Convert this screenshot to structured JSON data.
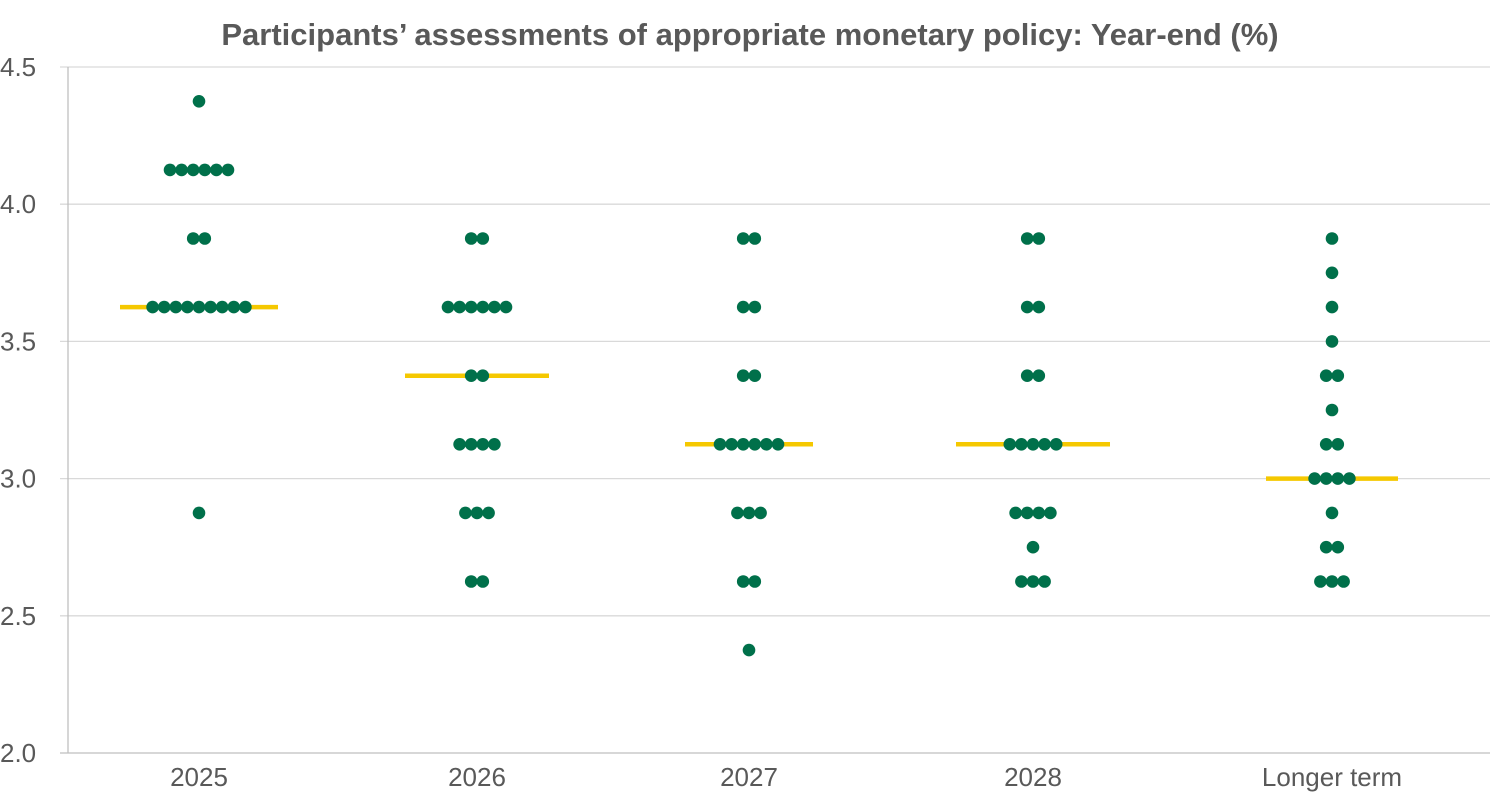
{
  "chart_data": {
    "type": "scatter",
    "title": "Participants’ assessments of appropriate monetary policy: Year-end (%)",
    "xlabel": "",
    "ylabel": "",
    "categories": [
      "2025",
      "2026",
      "2027",
      "2028",
      "Longer term"
    ],
    "ylim": [
      2.0,
      4.5
    ],
    "yticks": [
      2.0,
      2.5,
      3.0,
      3.5,
      4.0,
      4.5
    ],
    "ytick_labels": [
      "2.0",
      "2.5",
      "3.0",
      "3.5",
      "4.0",
      "4.5"
    ],
    "grid": true,
    "legend": "none",
    "colors": {
      "dot": "#00704a",
      "median": "#f5c800",
      "text": "#595959",
      "grid": "#d9d9d9"
    },
    "series": [
      {
        "category": "2025",
        "median": 3.625,
        "points": [
          {
            "y": 4.375,
            "count": 1
          },
          {
            "y": 4.125,
            "count": 6
          },
          {
            "y": 3.875,
            "count": 2
          },
          {
            "y": 3.625,
            "count": 9
          },
          {
            "y": 2.875,
            "count": 1
          }
        ]
      },
      {
        "category": "2026",
        "median": 3.375,
        "points": [
          {
            "y": 3.875,
            "count": 2
          },
          {
            "y": 3.625,
            "count": 6
          },
          {
            "y": 3.375,
            "count": 2
          },
          {
            "y": 3.125,
            "count": 4
          },
          {
            "y": 2.875,
            "count": 3
          },
          {
            "y": 2.625,
            "count": 2
          }
        ]
      },
      {
        "category": "2027",
        "median": 3.125,
        "points": [
          {
            "y": 3.875,
            "count": 2
          },
          {
            "y": 3.625,
            "count": 2
          },
          {
            "y": 3.375,
            "count": 2
          },
          {
            "y": 3.125,
            "count": 6
          },
          {
            "y": 2.875,
            "count": 3
          },
          {
            "y": 2.625,
            "count": 2
          },
          {
            "y": 2.375,
            "count": 1
          }
        ]
      },
      {
        "category": "2028",
        "median": 3.125,
        "points": [
          {
            "y": 3.875,
            "count": 2
          },
          {
            "y": 3.625,
            "count": 2
          },
          {
            "y": 3.375,
            "count": 2
          },
          {
            "y": 3.125,
            "count": 5
          },
          {
            "y": 2.875,
            "count": 4
          },
          {
            "y": 2.75,
            "count": 1
          },
          {
            "y": 2.625,
            "count": 3
          }
        ]
      },
      {
        "category": "Longer term",
        "median": 3.0,
        "points": [
          {
            "y": 3.875,
            "count": 1
          },
          {
            "y": 3.75,
            "count": 1
          },
          {
            "y": 3.625,
            "count": 1
          },
          {
            "y": 3.5,
            "count": 1
          },
          {
            "y": 3.375,
            "count": 2
          },
          {
            "y": 3.25,
            "count": 1
          },
          {
            "y": 3.125,
            "count": 2
          },
          {
            "y": 3.0,
            "count": 4
          },
          {
            "y": 2.875,
            "count": 1
          },
          {
            "y": 2.75,
            "count": 2
          },
          {
            "y": 2.625,
            "count": 3
          }
        ]
      }
    ]
  }
}
